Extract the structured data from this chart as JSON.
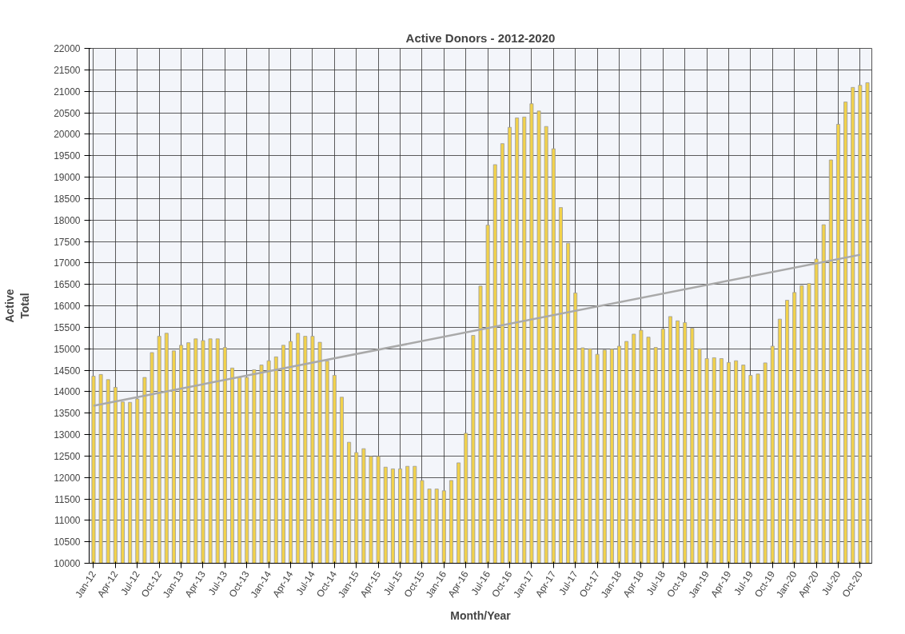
{
  "chart_data": {
    "type": "bar",
    "title": "Active Donors - 2012-2020",
    "xlabel": "Month/Year",
    "ylabel": "Active\nTotal",
    "categories": [
      "Jan-12",
      null,
      null,
      "Apr-12",
      null,
      null,
      "Jul-12",
      null,
      null,
      "Oct-12",
      null,
      null,
      "Jan-13",
      null,
      null,
      "Apr-13",
      null,
      null,
      "Jul-13",
      null,
      null,
      "Oct-13",
      null,
      null,
      "Jan-14",
      null,
      null,
      "Apr-14",
      null,
      null,
      "Jul-14",
      null,
      null,
      "Oct-14",
      null,
      null,
      "Jan-15",
      null,
      null,
      "Apr-15",
      null,
      null,
      "Jul-15",
      null,
      null,
      "Oct-15",
      null,
      null,
      "Jan-16",
      null,
      null,
      "Apr-16",
      null,
      null,
      "Jul-16",
      null,
      null,
      "Oct-16",
      null,
      null,
      "Jan-17",
      null,
      null,
      "Apr-17",
      null,
      null,
      "Jul-17",
      null,
      null,
      "Oct-17",
      null,
      null,
      "Jan-18",
      null,
      null,
      "Apr-18",
      null,
      null,
      "Jul-18",
      null,
      null,
      "Oct-18",
      null,
      null,
      "Jan-19",
      null,
      null,
      "Apr-19",
      null,
      null,
      "Jul-19",
      null,
      null,
      "Oct-19",
      null,
      null,
      "Jan-20",
      null,
      null,
      "Apr-20",
      null,
      null,
      "Jul-20",
      null,
      null,
      "Oct-20",
      null
    ],
    "series": [
      {
        "color": "#f2d24b",
        "values": [
          14360,
          14400,
          14280,
          14100,
          13760,
          13750,
          13830,
          14330,
          14910,
          15290,
          15360,
          14950,
          15080,
          15140,
          15230,
          15190,
          15230,
          15230,
          15030,
          14550,
          14330,
          14330,
          14510,
          14620,
          14720,
          14810,
          15080,
          15170,
          15360,
          15290,
          15290,
          15150,
          14710,
          14380,
          13870,
          12820,
          12580,
          12670,
          12490,
          12490,
          12240,
          12200,
          12200,
          12260,
          12260,
          11930,
          11730,
          11730,
          11690,
          11930,
          12340,
          13030,
          15310,
          16460,
          17880,
          19290,
          19780,
          20160,
          20380,
          20400,
          20710,
          20540,
          20180,
          19660,
          18290,
          17460,
          16300,
          15020,
          15000,
          14870,
          14970,
          14990,
          15060,
          15170,
          15340,
          15430,
          15270,
          15030,
          15460,
          15750,
          15650,
          15610,
          15480,
          15000,
          14770,
          14790,
          14770,
          14680,
          14720,
          14620,
          14380,
          14410,
          14670,
          15060,
          15690,
          16130,
          16310,
          16470,
          16520,
          17090,
          17890,
          19400,
          20230,
          20750,
          21090,
          21140,
          21200
        ]
      },
      {
        "type": "line",
        "color": "#a9a9a9",
        "x": [
          "Jan-12",
          "Oct-20"
        ],
        "values": [
          13670,
          17190
        ]
      }
    ],
    "ylim": [
      10000,
      22000
    ],
    "yticks": [
      10000,
      10500,
      11000,
      11500,
      12000,
      12500,
      13000,
      13500,
      14000,
      14500,
      15000,
      15500,
      16000,
      16500,
      17000,
      17500,
      18000,
      18500,
      19000,
      19500,
      20000,
      20500,
      21000,
      21500,
      22000
    ],
    "grid": true
  }
}
